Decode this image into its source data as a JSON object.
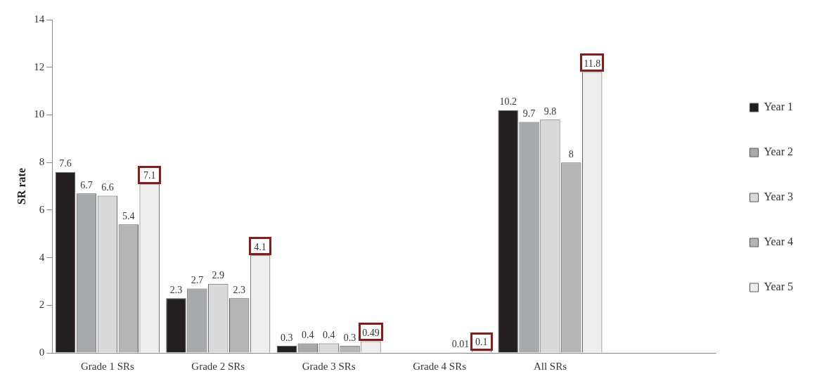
{
  "chart_data": {
    "type": "bar",
    "ylabel": "SR rate",
    "categories": [
      "Grade 1 SRs",
      "Grade 2 SRs",
      "Grade 3 SRs",
      "Grade 4 SRs",
      "All SRs",
      null
    ],
    "series": [
      {
        "name": "Year 1",
        "color": "#231f20",
        "values": [
          7.6,
          2.3,
          0.3,
          null,
          10.2,
          null
        ]
      },
      {
        "name": "Year 2",
        "color": "#a7a9ac",
        "values": [
          6.7,
          2.7,
          0.4,
          null,
          9.7,
          null
        ]
      },
      {
        "name": "Year 3",
        "color": "#dadada",
        "values": [
          6.6,
          2.9,
          0.4,
          null,
          9.8,
          null
        ]
      },
      {
        "name": "Year 4",
        "color": "#b5b5b5",
        "values": [
          5.4,
          2.3,
          0.3,
          0.01,
          8,
          null
        ]
      },
      {
        "name": "Year 5",
        "color": "#eeeeee",
        "values": [
          7.1,
          4.1,
          0.49,
          0.1,
          11.8,
          null
        ]
      }
    ],
    "ylim": [
      0,
      14
    ],
    "yticks": [
      0,
      2,
      4,
      6,
      8,
      10,
      12,
      14
    ],
    "grid": false,
    "legend": "right",
    "data_labels": true
  }
}
